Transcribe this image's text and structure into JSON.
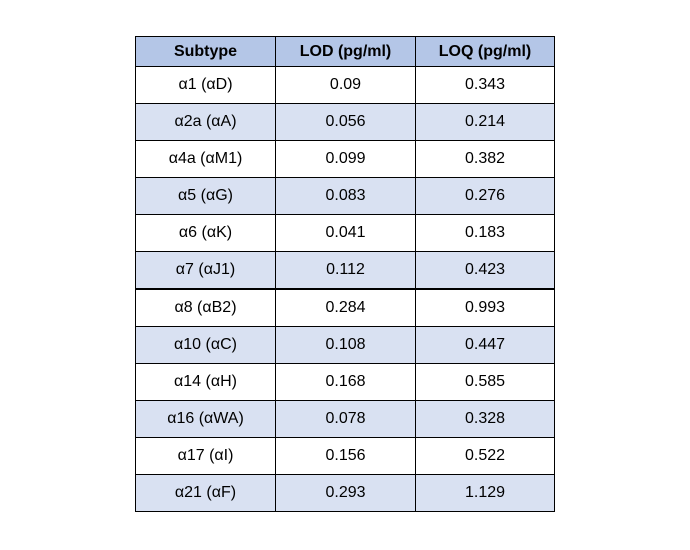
{
  "colors": {
    "header_bg": "#b4c6e7",
    "band_bg": "#d9e1f2",
    "row_bg": "#ffffff",
    "border": "#000000"
  },
  "table": {
    "headers": [
      "Subtype",
      "LOD (pg/ml)",
      "LOQ (pg/ml)"
    ],
    "rows": [
      [
        "α1 (αD)",
        "0.09",
        "0.343"
      ],
      [
        "α2a (αA)",
        "0.056",
        "0.214"
      ],
      [
        "α4a (αM1)",
        "0.099",
        "0.382"
      ],
      [
        "α5 (αG)",
        "0.083",
        "0.276"
      ],
      [
        "α6 (αK)",
        "0.041",
        "0.183"
      ],
      [
        "α7 (αJ1)",
        "0.112",
        "0.423"
      ],
      [
        "α8 (αB2)",
        "0.284",
        "0.993"
      ],
      [
        "α10 (αC)",
        "0.108",
        "0.447"
      ],
      [
        "α14 (αH)",
        "0.168",
        "0.585"
      ],
      [
        "α16 (αWA)",
        "0.078",
        "0.328"
      ],
      [
        "α17 (αI)",
        "0.156",
        "0.522"
      ],
      [
        "α21 (αF)",
        "0.293",
        "1.129"
      ]
    ]
  }
}
